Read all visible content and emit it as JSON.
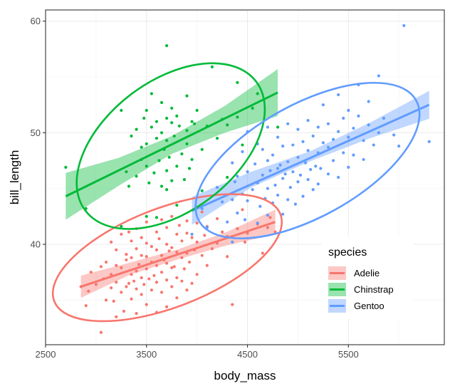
{
  "chart_data": {
    "type": "scatter",
    "title": "",
    "xlabel": "body_mass",
    "ylabel": "bill_length",
    "xlim": [
      2500,
      6450
    ],
    "ylim": [
      31,
      61.0
    ],
    "xticks": [
      2500,
      3500,
      4500,
      5500
    ],
    "xtick_labels": [
      "2500",
      "3500",
      "4500",
      "5500"
    ],
    "yticks": [
      40,
      50,
      60
    ],
    "ytick_labels": [
      "40",
      "50",
      "60"
    ],
    "grid": true,
    "legend": {
      "title": "species",
      "placement": "right-inside"
    },
    "series": [
      {
        "name": "Adelie",
        "color": "#F8766D",
        "fit": {
          "x": [
            2850,
            4775
          ],
          "y": [
            36.2,
            42.0
          ],
          "band": [
            [
              36.2,
              1.0
            ],
            [
              37.8,
              0.55
            ],
            [
              39.1,
              0.45
            ],
            [
              40.5,
              0.6
            ],
            [
              42.0,
              1.1
            ]
          ]
        },
        "ellipse": {
          "cx": 3706,
          "cy": 38.8,
          "rx": 1200,
          "ry": 4.45,
          "angle_deg": -21
        },
        "points": [
          [
            2850,
            36.2
          ],
          [
            2900,
            34.5
          ],
          [
            2925,
            35.8
          ],
          [
            2950,
            37.5
          ],
          [
            3000,
            36.4
          ],
          [
            3050,
            32.1
          ],
          [
            3050,
            38.0
          ],
          [
            3075,
            36.9
          ],
          [
            3100,
            35.0
          ],
          [
            3100,
            38.4
          ],
          [
            3150,
            36.1
          ],
          [
            3150,
            37.3
          ],
          [
            3150,
            40.2
          ],
          [
            3175,
            34.9
          ],
          [
            3200,
            33.5
          ],
          [
            3200,
            36.6
          ],
          [
            3200,
            38.1
          ],
          [
            3200,
            39.5
          ],
          [
            3250,
            35.7
          ],
          [
            3250,
            37.9
          ],
          [
            3250,
            40.9
          ],
          [
            3275,
            34.0
          ],
          [
            3300,
            36.2
          ],
          [
            3300,
            38.6
          ],
          [
            3300,
            39.1
          ],
          [
            3325,
            36.5
          ],
          [
            3325,
            41.1
          ],
          [
            3350,
            35.1
          ],
          [
            3350,
            37.3
          ],
          [
            3350,
            38.8
          ],
          [
            3350,
            40.3
          ],
          [
            3375,
            36.7
          ],
          [
            3400,
            33.8
          ],
          [
            3400,
            36.0
          ],
          [
            3400,
            37.6
          ],
          [
            3400,
            39.6
          ],
          [
            3400,
            41.4
          ],
          [
            3425,
            38.2
          ],
          [
            3450,
            35.5
          ],
          [
            3450,
            37.0
          ],
          [
            3450,
            39.0
          ],
          [
            3450,
            40.6
          ],
          [
            3475,
            36.4
          ],
          [
            3500,
            34.6
          ],
          [
            3500,
            37.8
          ],
          [
            3500,
            38.9
          ],
          [
            3500,
            40.1
          ],
          [
            3500,
            42.0
          ],
          [
            3525,
            36.9
          ],
          [
            3550,
            35.9
          ],
          [
            3550,
            38.4
          ],
          [
            3550,
            39.8
          ],
          [
            3575,
            37.2
          ],
          [
            3600,
            33.9
          ],
          [
            3600,
            36.6
          ],
          [
            3600,
            38.1
          ],
          [
            3600,
            39.5
          ],
          [
            3600,
            41.1
          ],
          [
            3625,
            40.5
          ],
          [
            3650,
            35.7
          ],
          [
            3650,
            37.5
          ],
          [
            3650,
            39.0
          ],
          [
            3650,
            42.2
          ],
          [
            3675,
            38.6
          ],
          [
            3700,
            34.4
          ],
          [
            3700,
            36.8
          ],
          [
            3700,
            38.3
          ],
          [
            3700,
            40.0
          ],
          [
            3700,
            41.5
          ],
          [
            3725,
            39.4
          ],
          [
            3750,
            36.2
          ],
          [
            3750,
            37.9
          ],
          [
            3750,
            39.7
          ],
          [
            3750,
            42.5
          ],
          [
            3775,
            38.0
          ],
          [
            3800,
            35.2
          ],
          [
            3800,
            37.0
          ],
          [
            3800,
            39.3
          ],
          [
            3800,
            40.9
          ],
          [
            3825,
            41.7
          ],
          [
            3850,
            36.7
          ],
          [
            3850,
            38.8
          ],
          [
            3850,
            40.3
          ],
          [
            3875,
            37.8
          ],
          [
            3900,
            35.9
          ],
          [
            3900,
            39.2
          ],
          [
            3900,
            41.0
          ],
          [
            3900,
            42.1
          ],
          [
            3925,
            38.4
          ],
          [
            3950,
            36.5
          ],
          [
            3950,
            40.6
          ],
          [
            3975,
            39.5
          ],
          [
            4000,
            37.3
          ],
          [
            4000,
            40.2
          ],
          [
            4000,
            41.9
          ],
          [
            4050,
            39.0
          ],
          [
            4050,
            42.9
          ],
          [
            4075,
            40.8
          ],
          [
            4100,
            38.1
          ],
          [
            4100,
            41.6
          ],
          [
            4150,
            39.6
          ],
          [
            4200,
            40.1
          ],
          [
            4200,
            42.3
          ],
          [
            4250,
            41.1
          ],
          [
            4300,
            38.9
          ],
          [
            4300,
            40.7
          ],
          [
            4350,
            34.6
          ],
          [
            4400,
            41.4
          ],
          [
            4450,
            43.1
          ],
          [
            4475,
            40.2
          ],
          [
            4500,
            41.0
          ],
          [
            4600,
            41.8
          ],
          [
            4650,
            39.2
          ],
          [
            4700,
            41.5
          ],
          [
            4725,
            42.4
          ],
          [
            4775,
            41.1
          ]
        ]
      },
      {
        "name": "Chinstrap",
        "color": "#00BA38",
        "fit": {
          "x": [
            2700,
            4800
          ],
          "y": [
            44.3,
            53.6
          ],
          "band": [
            [
              44.3,
              2.1
            ],
            [
              46.5,
              1.25
            ],
            [
              48.9,
              0.8
            ],
            [
              51.2,
              1.2
            ],
            [
              53.6,
              2.1
            ]
          ]
        },
        "ellipse": {
          "cx": 3740,
          "cy": 48.8,
          "rx": 1060,
          "ry": 5.85,
          "angle_deg": -37
        },
        "points": [
          [
            2700,
            46.9
          ],
          [
            2900,
            43.2
          ],
          [
            3250,
            52.0
          ],
          [
            3250,
            41.6
          ],
          [
            3300,
            46.5
          ],
          [
            3325,
            45.2
          ],
          [
            3350,
            49.7
          ],
          [
            3400,
            46.1
          ],
          [
            3400,
            50.3
          ],
          [
            3450,
            47.6
          ],
          [
            3450,
            48.7
          ],
          [
            3475,
            51.3
          ],
          [
            3500,
            42.5
          ],
          [
            3500,
            47.0
          ],
          [
            3500,
            49.0
          ],
          [
            3500,
            52.0
          ],
          [
            3525,
            45.5
          ],
          [
            3550,
            50.5
          ],
          [
            3550,
            53.5
          ],
          [
            3575,
            46.4
          ],
          [
            3600,
            42.4
          ],
          [
            3600,
            49.5
          ],
          [
            3600,
            51.0
          ],
          [
            3625,
            47.5
          ],
          [
            3650,
            45.2
          ],
          [
            3650,
            50.0
          ],
          [
            3650,
            52.7
          ],
          [
            3675,
            48.5
          ],
          [
            3700,
            44.9
          ],
          [
            3700,
            46.6
          ],
          [
            3700,
            49.3
          ],
          [
            3700,
            51.3
          ],
          [
            3700,
            57.8
          ],
          [
            3725,
            47.8
          ],
          [
            3750,
            45.7
          ],
          [
            3750,
            50.9
          ],
          [
            3750,
            52.2
          ],
          [
            3775,
            49.7
          ],
          [
            3800,
            43.5
          ],
          [
            3800,
            47.0
          ],
          [
            3800,
            51.5
          ],
          [
            3825,
            50.6
          ],
          [
            3850,
            48.1
          ],
          [
            3875,
            45.8
          ],
          [
            3900,
            49.0
          ],
          [
            3900,
            50.2
          ],
          [
            3900,
            53.3
          ],
          [
            3925,
            46.8
          ],
          [
            3950,
            47.6
          ],
          [
            3950,
            51.0
          ],
          [
            3975,
            50.8
          ],
          [
            4000,
            52.0
          ],
          [
            4050,
            44.8
          ],
          [
            4050,
            48.5
          ],
          [
            4100,
            50.6
          ],
          [
            4150,
            55.9
          ],
          [
            4200,
            49.5
          ],
          [
            4250,
            51.2
          ],
          [
            4300,
            46.0
          ],
          [
            4300,
            50.7
          ],
          [
            4400,
            51.4
          ],
          [
            4400,
            54.5
          ],
          [
            4450,
            48.9
          ],
          [
            4550,
            52.2
          ],
          [
            4600,
            53.5
          ],
          [
            4800,
            50.5
          ]
        ]
      },
      {
        "name": "Gentoo",
        "color": "#619CFF",
        "fit": {
          "x": [
            3950,
            6300
          ],
          "y": [
            43.0,
            52.5
          ],
          "band": [
            [
              43.0,
              1.25
            ],
            [
              45.8,
              0.7
            ],
            [
              47.9,
              0.45
            ],
            [
              50.2,
              0.7
            ],
            [
              52.5,
              1.25
            ]
          ]
        },
        "ellipse": {
          "cx": 5095,
          "cy": 47.5,
          "rx": 1230,
          "ry": 5.05,
          "angle_deg": -29
        },
        "points": [
          [
            3950,
            40.9
          ],
          [
            4050,
            43.2
          ],
          [
            4100,
            41.5
          ],
          [
            4200,
            45.1
          ],
          [
            4250,
            43.8
          ],
          [
            4300,
            42.0
          ],
          [
            4350,
            40.2
          ],
          [
            4350,
            44.0
          ],
          [
            4350,
            47.3
          ],
          [
            4375,
            45.6
          ],
          [
            4400,
            42.8
          ],
          [
            4400,
            46.1
          ],
          [
            4450,
            44.5
          ],
          [
            4450,
            48.3
          ],
          [
            4475,
            42.2
          ],
          [
            4500,
            43.9
          ],
          [
            4500,
            46.5
          ],
          [
            4500,
            50.1
          ],
          [
            4550,
            44.9
          ],
          [
            4575,
            47.2
          ],
          [
            4600,
            41.9
          ],
          [
            4600,
            45.5
          ],
          [
            4600,
            49.0
          ],
          [
            4625,
            43.4
          ],
          [
            4650,
            46.2
          ],
          [
            4650,
            48.5
          ],
          [
            4675,
            44.1
          ],
          [
            4700,
            42.6
          ],
          [
            4700,
            45.0
          ],
          [
            4700,
            47.5
          ],
          [
            4700,
            50.5
          ],
          [
            4725,
            46.6
          ],
          [
            4750,
            43.7
          ],
          [
            4750,
            48.0
          ],
          [
            4775,
            45.3
          ],
          [
            4800,
            44.4
          ],
          [
            4800,
            46.8
          ],
          [
            4800,
            49.6
          ],
          [
            4825,
            47.1
          ],
          [
            4850,
            42.7
          ],
          [
            4850,
            45.9
          ],
          [
            4850,
            48.8
          ],
          [
            4875,
            46.3
          ],
          [
            4900,
            44.0
          ],
          [
            4900,
            47.4
          ],
          [
            4900,
            50.8
          ],
          [
            4925,
            45.1
          ],
          [
            4950,
            46.5
          ],
          [
            4950,
            48.9
          ],
          [
            4975,
            43.6
          ],
          [
            5000,
            45.6
          ],
          [
            5000,
            47.8
          ],
          [
            5000,
            50.3
          ],
          [
            5025,
            46.2
          ],
          [
            5050,
            44.3
          ],
          [
            5050,
            49.2
          ],
          [
            5075,
            47.3
          ],
          [
            5100,
            45.8
          ],
          [
            5100,
            48.4
          ],
          [
            5100,
            51.1
          ],
          [
            5125,
            46.7
          ],
          [
            5150,
            44.9
          ],
          [
            5150,
            49.7
          ],
          [
            5175,
            47.0
          ],
          [
            5200,
            45.4
          ],
          [
            5200,
            48.2
          ],
          [
            5200,
            50.5
          ],
          [
            5225,
            46.8
          ],
          [
            5250,
            49.1
          ],
          [
            5250,
            52.5
          ],
          [
            5300,
            46.3
          ],
          [
            5300,
            48.7
          ],
          [
            5300,
            50.8
          ],
          [
            5350,
            47.5
          ],
          [
            5350,
            49.4
          ],
          [
            5400,
            46.0
          ],
          [
            5400,
            50.1
          ],
          [
            5400,
            53.4
          ],
          [
            5450,
            48.2
          ],
          [
            5450,
            51.3
          ],
          [
            5500,
            46.9
          ],
          [
            5500,
            49.6
          ],
          [
            5500,
            52.0
          ],
          [
            5550,
            50.4
          ],
          [
            5550,
            48.0
          ],
          [
            5600,
            51.5
          ],
          [
            5600,
            54.3
          ],
          [
            5650,
            49.3
          ],
          [
            5650,
            47.6
          ],
          [
            5700,
            50.7
          ],
          [
            5700,
            52.8
          ],
          [
            5750,
            48.9
          ],
          [
            5800,
            50.0
          ],
          [
            5800,
            55.1
          ],
          [
            5850,
            51.3
          ],
          [
            5950,
            49.8
          ],
          [
            6000,
            48.8
          ],
          [
            6050,
            59.6
          ],
          [
            6300,
            49.2
          ]
        ]
      }
    ]
  }
}
